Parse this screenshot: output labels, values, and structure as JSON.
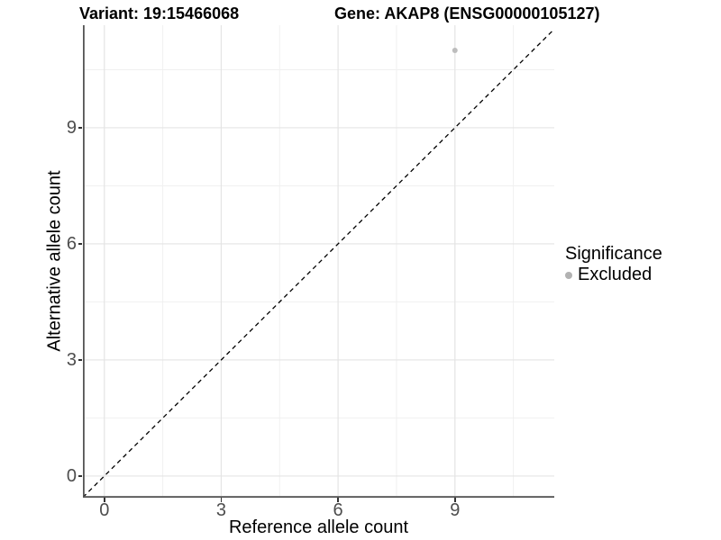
{
  "chart_data": {
    "type": "scatter",
    "titles": {
      "left": "Variant: 19:15466068",
      "right": "Gene: AKAP8 (ENSG00000105127)"
    },
    "xlabel": "Reference allele count",
    "ylabel": "Alternative allele count",
    "xlim": [
      -0.55,
      11.55
    ],
    "ylim": [
      -0.56,
      11.65
    ],
    "xticks": [
      0,
      3,
      6,
      9
    ],
    "yticks": [
      0,
      3,
      6,
      9
    ],
    "xminor": [
      1.5,
      4.5,
      7.5,
      10.5
    ],
    "yminor": [
      1.5,
      4.5,
      7.5,
      10.5
    ],
    "grid": true,
    "legend_position": "right",
    "legend": {
      "title": "Significance",
      "items": [
        {
          "label": "Excluded",
          "color": "#b2b2b2"
        }
      ]
    },
    "series": [
      {
        "name": "Excluded",
        "color": "#bdbdbd",
        "points": [
          {
            "x": 9,
            "y": 11
          }
        ]
      }
    ],
    "reference_line": {
      "type": "identity",
      "slope": 1,
      "intercept": 0,
      "style": "dashed",
      "color": "#000000"
    }
  },
  "style": {
    "axis_line_color": "#555555",
    "tick_color": "#333333",
    "tick_label_color": "#4d4d4d",
    "grid_major_color": "#e4e4e4",
    "grid_minor_color": "#f0f0f0",
    "background": "#ffffff"
  }
}
